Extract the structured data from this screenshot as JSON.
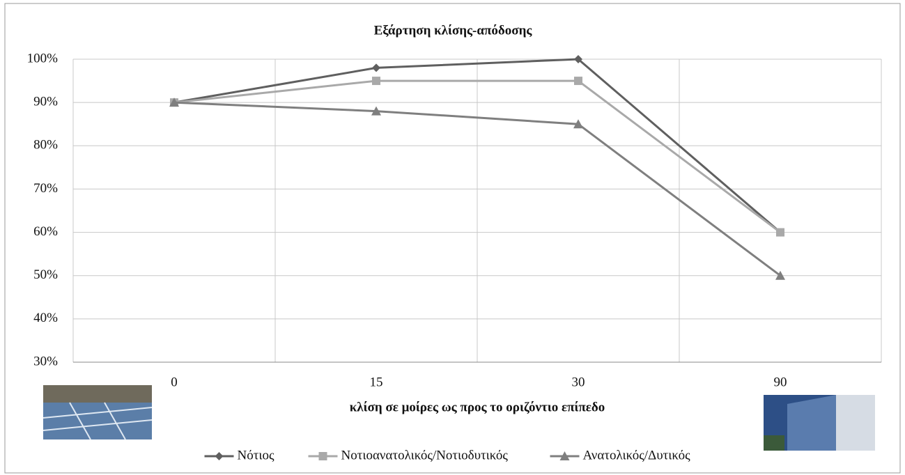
{
  "chart_data": {
    "type": "line",
    "title": "Εξάρτηση κλίσης-απόδοσης",
    "x_label": "κλίση σε μοίρες ως προς το οριζόντιο επίπεδο",
    "categories": [
      "0",
      "15",
      "30",
      "90"
    ],
    "series": [
      {
        "name": "Νότιος",
        "color": "#5f5f5f",
        "marker": "diamond",
        "values": [
          90,
          98,
          100,
          60
        ]
      },
      {
        "name": "Νοτιοανατολικός/Νοτιοδυτικός",
        "color": "#a9a9a9",
        "marker": "square",
        "values": [
          90,
          95,
          95,
          60
        ]
      },
      {
        "name": "Ανατολικός/Δυτικός",
        "color": "#7f7f7f",
        "marker": "triangle",
        "values": [
          90,
          88,
          85,
          50
        ]
      }
    ],
    "ylim": [
      30,
      100
    ],
    "yticks": [
      {
        "value": 30,
        "label": "30%"
      },
      {
        "value": 40,
        "label": "40%"
      },
      {
        "value": 50,
        "label": "50%"
      },
      {
        "value": 60,
        "label": "60%"
      },
      {
        "value": 70,
        "label": "70%"
      },
      {
        "value": 80,
        "label": "80%"
      },
      {
        "value": 90,
        "label": "90%"
      },
      {
        "value": 100,
        "label": "100%"
      }
    ],
    "grid": true,
    "legend": "bottom"
  }
}
